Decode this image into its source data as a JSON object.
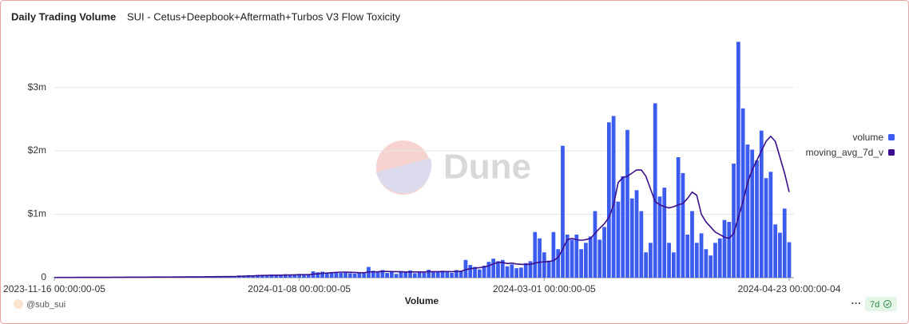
{
  "chart_data": {
    "type": "bar",
    "title": "Daily Trading Volume",
    "subtitle": "SUI - Cetus+Deepbook+Aftermath+Turbos V3 Flow Toxicity",
    "x_label": "Volume",
    "watermark": "Dune",
    "author": "@sub_sui",
    "badge": "7d",
    "legend": "right",
    "grid": true,
    "x": [
      "2023-11-16",
      "2023-11-17",
      "2023-11-18",
      "2023-11-19",
      "2023-11-20",
      "2023-11-21",
      "2023-11-22",
      "2023-11-23",
      "2023-11-24",
      "2023-11-25",
      "2023-11-26",
      "2023-11-27",
      "2023-11-28",
      "2023-11-29",
      "2023-11-30",
      "2023-12-01",
      "2023-12-02",
      "2023-12-03",
      "2023-12-04",
      "2023-12-05",
      "2023-12-06",
      "2023-12-07",
      "2023-12-08",
      "2023-12-09",
      "2023-12-10",
      "2023-12-11",
      "2023-12-12",
      "2023-12-13",
      "2023-12-14",
      "2023-12-15",
      "2023-12-16",
      "2023-12-17",
      "2023-12-18",
      "2023-12-19",
      "2023-12-20",
      "2023-12-21",
      "2023-12-22",
      "2023-12-23",
      "2023-12-24",
      "2023-12-25",
      "2023-12-26",
      "2023-12-27",
      "2023-12-28",
      "2023-12-29",
      "2023-12-30",
      "2023-12-31",
      "2024-01-01",
      "2024-01-02",
      "2024-01-03",
      "2024-01-04",
      "2024-01-05",
      "2024-01-06",
      "2024-01-07",
      "2024-01-08",
      "2024-01-09",
      "2024-01-10",
      "2024-01-11",
      "2024-01-12",
      "2024-01-13",
      "2024-01-14",
      "2024-01-15",
      "2024-01-16",
      "2024-01-17",
      "2024-01-18",
      "2024-01-19",
      "2024-01-20",
      "2024-01-21",
      "2024-01-22",
      "2024-01-23",
      "2024-01-24",
      "2024-01-25",
      "2024-01-26",
      "2024-01-27",
      "2024-01-28",
      "2024-01-29",
      "2024-01-30",
      "2024-01-31",
      "2024-02-01",
      "2024-02-02",
      "2024-02-03",
      "2024-02-04",
      "2024-02-05",
      "2024-02-06",
      "2024-02-07",
      "2024-02-08",
      "2024-02-09",
      "2024-02-10",
      "2024-02-11",
      "2024-02-12",
      "2024-02-13",
      "2024-02-14",
      "2024-02-15",
      "2024-02-16",
      "2024-02-17",
      "2024-02-18",
      "2024-02-19",
      "2024-02-20",
      "2024-02-21",
      "2024-02-22",
      "2024-02-23",
      "2024-02-24",
      "2024-02-25",
      "2024-02-26",
      "2024-02-27",
      "2024-02-28",
      "2024-02-29",
      "2024-03-01",
      "2024-03-02",
      "2024-03-03",
      "2024-03-04",
      "2024-03-05",
      "2024-03-06",
      "2024-03-07",
      "2024-03-08",
      "2024-03-09",
      "2024-03-10",
      "2024-03-11",
      "2024-03-12",
      "2024-03-13",
      "2024-03-14",
      "2024-03-15",
      "2024-03-16",
      "2024-03-17",
      "2024-03-18",
      "2024-03-19",
      "2024-03-20",
      "2024-03-21",
      "2024-03-22",
      "2024-03-23",
      "2024-03-24",
      "2024-03-25",
      "2024-03-26",
      "2024-03-27",
      "2024-03-28",
      "2024-03-29",
      "2024-03-30",
      "2024-03-31",
      "2024-04-01",
      "2024-04-02",
      "2024-04-03",
      "2024-04-04",
      "2024-04-05",
      "2024-04-06",
      "2024-04-07",
      "2024-04-08",
      "2024-04-09",
      "2024-04-10",
      "2024-04-11",
      "2024-04-12",
      "2024-04-13",
      "2024-04-14",
      "2024-04-15",
      "2024-04-16",
      "2024-04-17",
      "2024-04-18",
      "2024-04-19",
      "2024-04-20",
      "2024-04-21",
      "2024-04-22",
      "2024-04-23"
    ],
    "xlim": [
      "2023-11-16",
      "2024-04-23"
    ],
    "xticks": [
      {
        "value": "2023-11-16",
        "label": "2023-11-16 00:00:00-05"
      },
      {
        "value": "2024-01-08",
        "label": "2024-01-08 00:00:00-05"
      },
      {
        "value": "2024-03-01",
        "label": "2024-03-01 00:00:00-05"
      },
      {
        "value": "2024-04-23",
        "label": "2024-04-23 00:00:00-04"
      }
    ],
    "ylim": [
      0,
      3800000
    ],
    "yticks": [
      0,
      {
        "value": 1000000,
        "label": "$1m"
      },
      {
        "value": 2000000,
        "label": "$2m"
      },
      {
        "value": 3000000,
        "label": "$3m"
      }
    ],
    "series": [
      {
        "name": "volume",
        "type": "bar",
        "color": "#3c5cf0",
        "values": [
          4000,
          3000,
          5000,
          4000,
          6000,
          5000,
          4000,
          7000,
          6000,
          5000,
          8000,
          6000,
          7000,
          9000,
          8000,
          6000,
          10000,
          9000,
          8000,
          11000,
          10000,
          12000,
          9000,
          11000,
          13000,
          12000,
          10000,
          14000,
          13000,
          15000,
          12000,
          16000,
          14000,
          18000,
          15000,
          20000,
          17000,
          22000,
          19000,
          25000,
          35000,
          28000,
          40000,
          32000,
          45000,
          38000,
          30000,
          50000,
          42000,
          36000,
          55000,
          48000,
          40000,
          60000,
          52000,
          45000,
          100000,
          85000,
          95000,
          80000,
          90000,
          88000,
          75000,
          92000,
          70000,
          65000,
          80000,
          72000,
          170000,
          110000,
          90000,
          120000,
          75000,
          95000,
          60000,
          105000,
          85000,
          115000,
          70000,
          100000,
          80000,
          125000,
          95000,
          88000,
          110000,
          92000,
          78000,
          120000,
          100000,
          280000,
          200000,
          170000,
          130000,
          190000,
          250000,
          300000,
          260000,
          280000,
          180000,
          210000,
          150000,
          160000,
          230000,
          260000,
          720000,
          620000,
          400000,
          270000,
          720000,
          450000,
          2080000,
          680000,
          600000,
          680000,
          450000,
          550000,
          650000,
          1050000,
          600000,
          800000,
          2450000,
          2550000,
          1200000,
          1600000,
          2330000,
          1250000,
          1380000,
          1050000,
          400000,
          550000,
          2750000,
          1280000,
          1420000,
          550000,
          400000,
          1900000,
          1650000,
          680000,
          1050000,
          550000,
          700000,
          450000,
          350000,
          550000,
          620000,
          910000,
          880000,
          1800000,
          3720000,
          2670000,
          2100000,
          2020000,
          1850000,
          2320000,
          1570000,
          1670000,
          840000,
          710000,
          1090000,
          560000
        ]
      },
      {
        "name": "moving_avg_7d_v",
        "type": "line",
        "color": "#3b0f8c",
        "values": [
          4000,
          4000,
          4000,
          4000,
          4000,
          5000,
          5000,
          5000,
          5000,
          5000,
          6000,
          6000,
          6000,
          7000,
          7000,
          7000,
          8000,
          8000,
          8000,
          9000,
          9000,
          10000,
          10000,
          10000,
          11000,
          11000,
          12000,
          12000,
          12000,
          13000,
          13000,
          14000,
          14000,
          15000,
          15000,
          16000,
          17000,
          18000,
          18000,
          19000,
          22000,
          24000,
          27000,
          29000,
          32000,
          35000,
          37000,
          39000,
          40000,
          41000,
          42000,
          44000,
          45000,
          47000,
          48000,
          48000,
          56000,
          62000,
          70000,
          74000,
          78000,
          85000,
          88000,
          88000,
          86000,
          83000,
          80000,
          78000,
          90000,
          92000,
          94000,
          100000,
          98000,
          97000,
          95000,
          93000,
          90000,
          90000,
          90000,
          92000,
          90000,
          95000,
          96000,
          95000,
          97000,
          97000,
          96000,
          98000,
          101000,
          128000,
          141000,
          152000,
          158000,
          170000,
          189000,
          218000,
          241000,
          241000,
          224000,
          230000,
          216000,
          210000,
          210000,
          210000,
          230000,
          245000,
          250000,
          255000,
          270000,
          320000,
          450000,
          600000,
          620000,
          600000,
          590000,
          600000,
          620000,
          700000,
          780000,
          850000,
          950000,
          1150000,
          1500000,
          1580000,
          1600000,
          1650000,
          1700000,
          1700000,
          1600000,
          1400000,
          1200000,
          1150000,
          1120000,
          1100000,
          1120000,
          1150000,
          1170000,
          1250000,
          1350000,
          1300000,
          1000000,
          880000,
          800000,
          720000,
          680000,
          640000,
          620000,
          700000,
          950000,
          1200000,
          1500000,
          1700000,
          1850000,
          2000000,
          2150000,
          2230000,
          2150000,
          1900000,
          1650000,
          1350000
        ]
      }
    ]
  }
}
